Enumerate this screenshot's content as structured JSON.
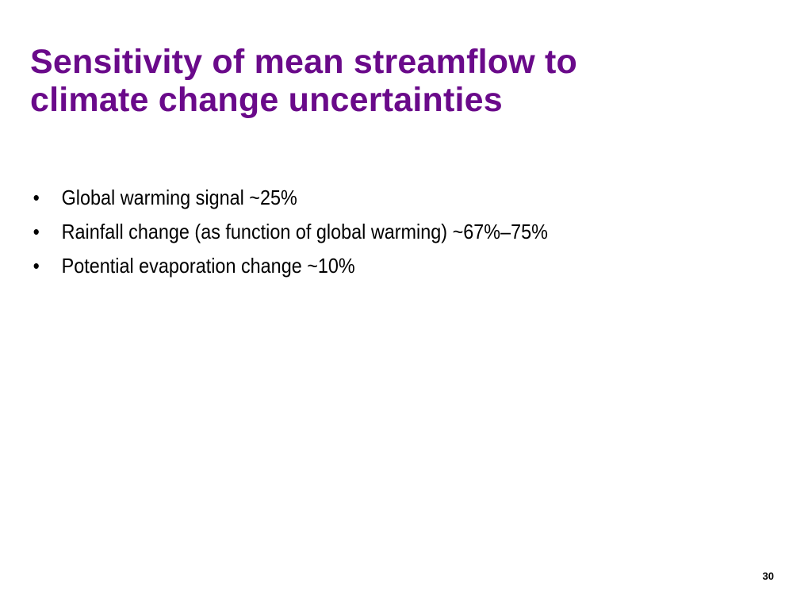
{
  "slide": {
    "title_line1": "Sensitivity of mean streamflow to",
    "title_line2": "climate change uncertainties",
    "bullet_glyph": "•",
    "bullets": [
      "Global warming signal ~25%",
      "Rainfall change (as function of global warming) ~67%–75%",
      "Potential evaporation change ~10%"
    ],
    "page_number": "30"
  },
  "colors": {
    "title": "#6a0a8a",
    "body_text": "#000000",
    "background": "#ffffff"
  }
}
